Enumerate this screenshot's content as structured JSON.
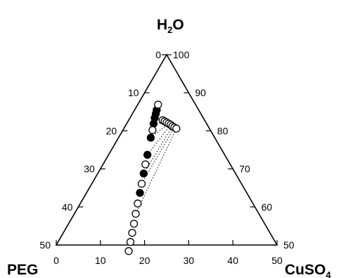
{
  "chart_data": {
    "type": "scatter",
    "subtype": "ternary-phase-diagram",
    "title": "",
    "corners": {
      "top": {
        "label": "H",
        "sub": "2",
        "tail": "O"
      },
      "left": {
        "label": "PEG",
        "sub": "",
        "tail": ""
      },
      "right": {
        "label": "CuSO",
        "sub": "4",
        "tail": ""
      }
    },
    "axes": {
      "left_edge_ticks": [
        "0",
        "10",
        "20",
        "30",
        "40",
        "50"
      ],
      "right_edge_ticks": [
        "100",
        "90",
        "80",
        "70",
        "60",
        "50"
      ],
      "bottom_edge_ticks": [
        "0",
        "10",
        "20",
        "30",
        "40",
        "50"
      ],
      "range": [
        0,
        50
      ],
      "water_range": [
        50,
        100
      ],
      "grid": false
    },
    "series": [
      {
        "marker": "filled-circle",
        "points": [
          {
            "cuso4": 5.0,
            "peg": 9.5
          },
          {
            "cuso4": 5.3,
            "peg": 10.2
          },
          {
            "cuso4": 5.6,
            "peg": 11.0
          },
          {
            "cuso4": 6.1,
            "peg": 12.0
          },
          {
            "cuso4": 7.3,
            "peg": 14.5
          },
          {
            "cuso4": 8.8,
            "peg": 17.5
          },
          {
            "cuso4": 10.4,
            "peg": 20.8
          },
          {
            "cuso4": 12.1,
            "peg": 24.2
          }
        ]
      },
      {
        "marker": "open-circle",
        "points": [
          {
            "cuso4": 4.6,
            "peg": 8.5
          },
          {
            "cuso4": 6.7,
            "peg": 13.1
          },
          {
            "cuso4": 9.6,
            "peg": 19.2
          },
          {
            "cuso4": 11.3,
            "peg": 22.6
          },
          {
            "cuso4": 13.0,
            "peg": 26.1
          },
          {
            "cuso4": 13.9,
            "peg": 27.9
          },
          {
            "cuso4": 14.8,
            "peg": 29.6
          },
          {
            "cuso4": 15.6,
            "peg": 31.2
          },
          {
            "cuso4": 16.4,
            "peg": 32.8
          },
          {
            "cuso4": 17.2,
            "peg": 34.4
          },
          {
            "cuso4": 7.7,
            "peg": 9.5
          },
          {
            "cuso4": 8.3,
            "peg": 9.2
          },
          {
            "cuso4": 8.9,
            "peg": 8.9
          },
          {
            "cuso4": 9.5,
            "peg": 8.6
          },
          {
            "cuso4": 10.1,
            "peg": 8.3
          },
          {
            "cuso4": 10.7,
            "peg": 8.1
          },
          {
            "cuso4": 11.3,
            "peg": 7.8
          },
          {
            "cuso4": 11.9,
            "peg": 7.5
          }
        ]
      }
    ],
    "tie_lines": [
      {
        "from": {
          "cuso4": 5.3,
          "peg": 10.2
        },
        "to": {
          "cuso4": 7.7,
          "peg": 9.5
        }
      },
      {
        "from": {
          "cuso4": 5.6,
          "peg": 11.0
        },
        "to": {
          "cuso4": 8.3,
          "peg": 9.2
        }
      },
      {
        "from": {
          "cuso4": 6.1,
          "peg": 12.0
        },
        "to": {
          "cuso4": 8.9,
          "peg": 8.9
        }
      },
      {
        "from": {
          "cuso4": 7.3,
          "peg": 14.5
        },
        "to": {
          "cuso4": 9.5,
          "peg": 8.6
        }
      },
      {
        "from": {
          "cuso4": 8.8,
          "peg": 17.5
        },
        "to": {
          "cuso4": 10.1,
          "peg": 8.3
        }
      },
      {
        "from": {
          "cuso4": 10.4,
          "peg": 20.8
        },
        "to": {
          "cuso4": 10.7,
          "peg": 8.1
        }
      },
      {
        "from": {
          "cuso4": 11.3,
          "peg": 22.6
        },
        "to": {
          "cuso4": 11.3,
          "peg": 7.8
        }
      },
      {
        "from": {
          "cuso4": 13.9,
          "peg": 27.9
        },
        "to": {
          "cuso4": 11.9,
          "peg": 7.5
        }
      }
    ]
  }
}
